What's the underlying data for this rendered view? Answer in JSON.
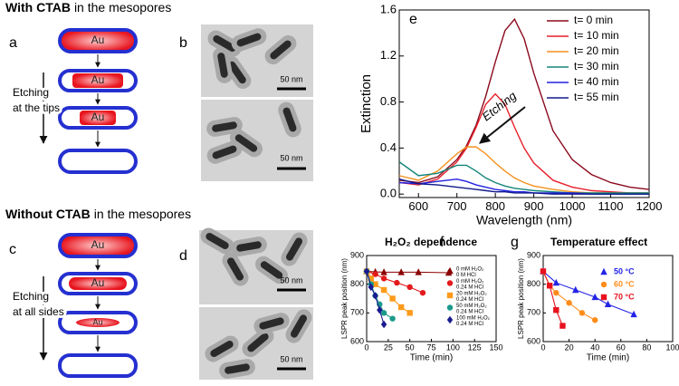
{
  "header_top": {
    "bold": "With CTAB",
    "rest": "in the mesopores"
  },
  "header_bottom": {
    "bold": "Without CTAB",
    "rest": "in the mesopores"
  },
  "panel_labels": [
    "a",
    "b",
    "c",
    "d",
    "e",
    "f",
    "g"
  ],
  "schematic_top": {
    "core": "Au",
    "arrow_label": [
      "Etching",
      "at the tips"
    ]
  },
  "schematic_bottom": {
    "core": "Au",
    "arrow_label": [
      "Etching",
      "at all sides"
    ]
  },
  "scale_bars": [
    "50 nm",
    "50 nm",
    "50 nm",
    "50 nm"
  ],
  "chart_data": [
    {
      "type": "line",
      "xlabel": "Wavelength (nm)",
      "ylabel": "Extinction",
      "annotation": "Etching",
      "x": [
        550,
        600,
        650,
        700,
        725,
        750,
        775,
        800,
        825,
        850,
        875,
        900,
        950,
        1000,
        1050,
        1100,
        1150,
        1200
      ],
      "xlim": [
        550,
        1200
      ],
      "xticks": [
        600,
        700,
        800,
        900,
        1000,
        1100,
        1200
      ],
      "ylim": [
        -0.03,
        1.6
      ],
      "yticks": [
        {
          "value": 0,
          "label": "0.0"
        },
        0.4,
        0.8,
        1.2,
        1.6
      ],
      "legend": "upper right",
      "series": [
        {
          "name": "t= 0 min",
          "color": "#8b0a1e",
          "values": [
            0.12,
            0.1,
            0.15,
            0.3,
            0.42,
            0.6,
            0.85,
            1.15,
            1.42,
            1.52,
            1.35,
            1.05,
            0.55,
            0.3,
            0.17,
            0.1,
            0.06,
            0.04
          ]
        },
        {
          "name": "t= 10 min",
          "color": "#e8202a",
          "values": [
            0.1,
            0.08,
            0.13,
            0.28,
            0.4,
            0.58,
            0.78,
            0.87,
            0.78,
            0.58,
            0.4,
            0.27,
            0.12,
            0.06,
            0.03,
            0.02,
            0.01,
            0.01
          ]
        },
        {
          "name": "t= 20 min",
          "color": "#f5901e",
          "values": [
            0.16,
            0.12,
            0.2,
            0.35,
            0.41,
            0.41,
            0.35,
            0.27,
            0.2,
            0.14,
            0.1,
            0.07,
            0.04,
            0.02,
            0.01,
            0.01,
            0.01,
            0.01
          ]
        },
        {
          "name": "t= 30 min",
          "color": "#13857a",
          "values": [
            0.28,
            0.16,
            0.18,
            0.25,
            0.25,
            0.2,
            0.14,
            0.1,
            0.07,
            0.05,
            0.04,
            0.03,
            0.02,
            0.01,
            0.01,
            0.01,
            0.01,
            0.01
          ]
        },
        {
          "name": "t= 40 min",
          "color": "#2121e0",
          "values": [
            0.1,
            0.09,
            0.11,
            0.13,
            0.11,
            0.08,
            0.06,
            0.04,
            0.03,
            0.02,
            0.02,
            0.01,
            0.01,
            0.01,
            0,
            0,
            0,
            0
          ]
        },
        {
          "name": "t= 55 min",
          "color": "#101a8a",
          "values": [
            0.13,
            0.09,
            0.08,
            0.06,
            0.05,
            0.04,
            0.03,
            0.02,
            0.02,
            0.01,
            0.01,
            0.01,
            0,
            0,
            0,
            0,
            0,
            0
          ]
        }
      ]
    },
    {
      "type": "scatter",
      "title": "H₂O₂ dependence",
      "xlabel": "Time (min)",
      "ylabel": "LSPR peak position (nm)",
      "xlim": [
        0,
        150
      ],
      "xticks": [
        0,
        25,
        50,
        75,
        100,
        125,
        150
      ],
      "ylim": [
        600,
        900
      ],
      "yticks": [
        600,
        700,
        800,
        900
      ],
      "connect": true,
      "legend": "upper right",
      "series": [
        {
          "name": "0 mM H₂O₂",
          "condition": "0 M HCl",
          "color": "#8b0000",
          "marker": "triangle",
          "x": [
            0,
            10,
            20,
            40,
            60,
            95
          ],
          "values": [
            845,
            843,
            842,
            842,
            842,
            840
          ]
        },
        {
          "name": "0 mM H₂O₂",
          "condition": "0.24 M HCl",
          "color": "#e41a1c",
          "marker": "circle",
          "x": [
            0,
            10,
            20,
            35,
            50,
            65
          ],
          "values": [
            845,
            835,
            820,
            805,
            790,
            770
          ]
        },
        {
          "name": "20 mM H₂O₂",
          "condition": "0.24 M HCl",
          "color": "#ff9a1a",
          "marker": "square",
          "x": [
            0,
            5,
            10,
            20,
            30,
            40,
            50
          ],
          "values": [
            845,
            820,
            800,
            780,
            750,
            720,
            700
          ]
        },
        {
          "name": "50 mM H₂O₂",
          "condition": "0.24 M HCl",
          "color": "#1a9a8a",
          "marker": "circle",
          "x": [
            0,
            5,
            10,
            15,
            20,
            30
          ],
          "values": [
            845,
            800,
            760,
            730,
            700,
            680
          ]
        },
        {
          "name": "100 mM H₂O₂",
          "condition": "0.24 M HCl",
          "color": "#1a1a90",
          "marker": "diamond",
          "x": [
            0,
            5,
            10,
            15,
            20
          ],
          "values": [
            845,
            790,
            760,
            710,
            660
          ]
        }
      ]
    },
    {
      "type": "scatter",
      "title": "Temperature effect",
      "xlabel": "Time (min)",
      "ylabel": "LSPR peak position (nm)",
      "xlim": [
        0,
        100
      ],
      "xticks": [
        0,
        20,
        40,
        60,
        80,
        100
      ],
      "ylim": [
        600,
        900
      ],
      "yticks": [
        600,
        700,
        800,
        900
      ],
      "connect": true,
      "legend": "upper right",
      "series": [
        {
          "name": "50 °C",
          "color": "#2323e6",
          "marker": "triangle",
          "x": [
            0,
            10,
            25,
            40,
            50,
            70
          ],
          "values": [
            845,
            805,
            780,
            755,
            730,
            695
          ]
        },
        {
          "name": "60 °C",
          "color": "#ff8c1a",
          "marker": "circle",
          "x": [
            0,
            5,
            10,
            20,
            30,
            40
          ],
          "values": [
            845,
            795,
            770,
            735,
            700,
            675
          ]
        },
        {
          "name": "70 °C",
          "color": "#e8101e",
          "marker": "square",
          "x": [
            0,
            5,
            10,
            15
          ],
          "values": [
            845,
            795,
            710,
            655
          ]
        }
      ]
    }
  ]
}
